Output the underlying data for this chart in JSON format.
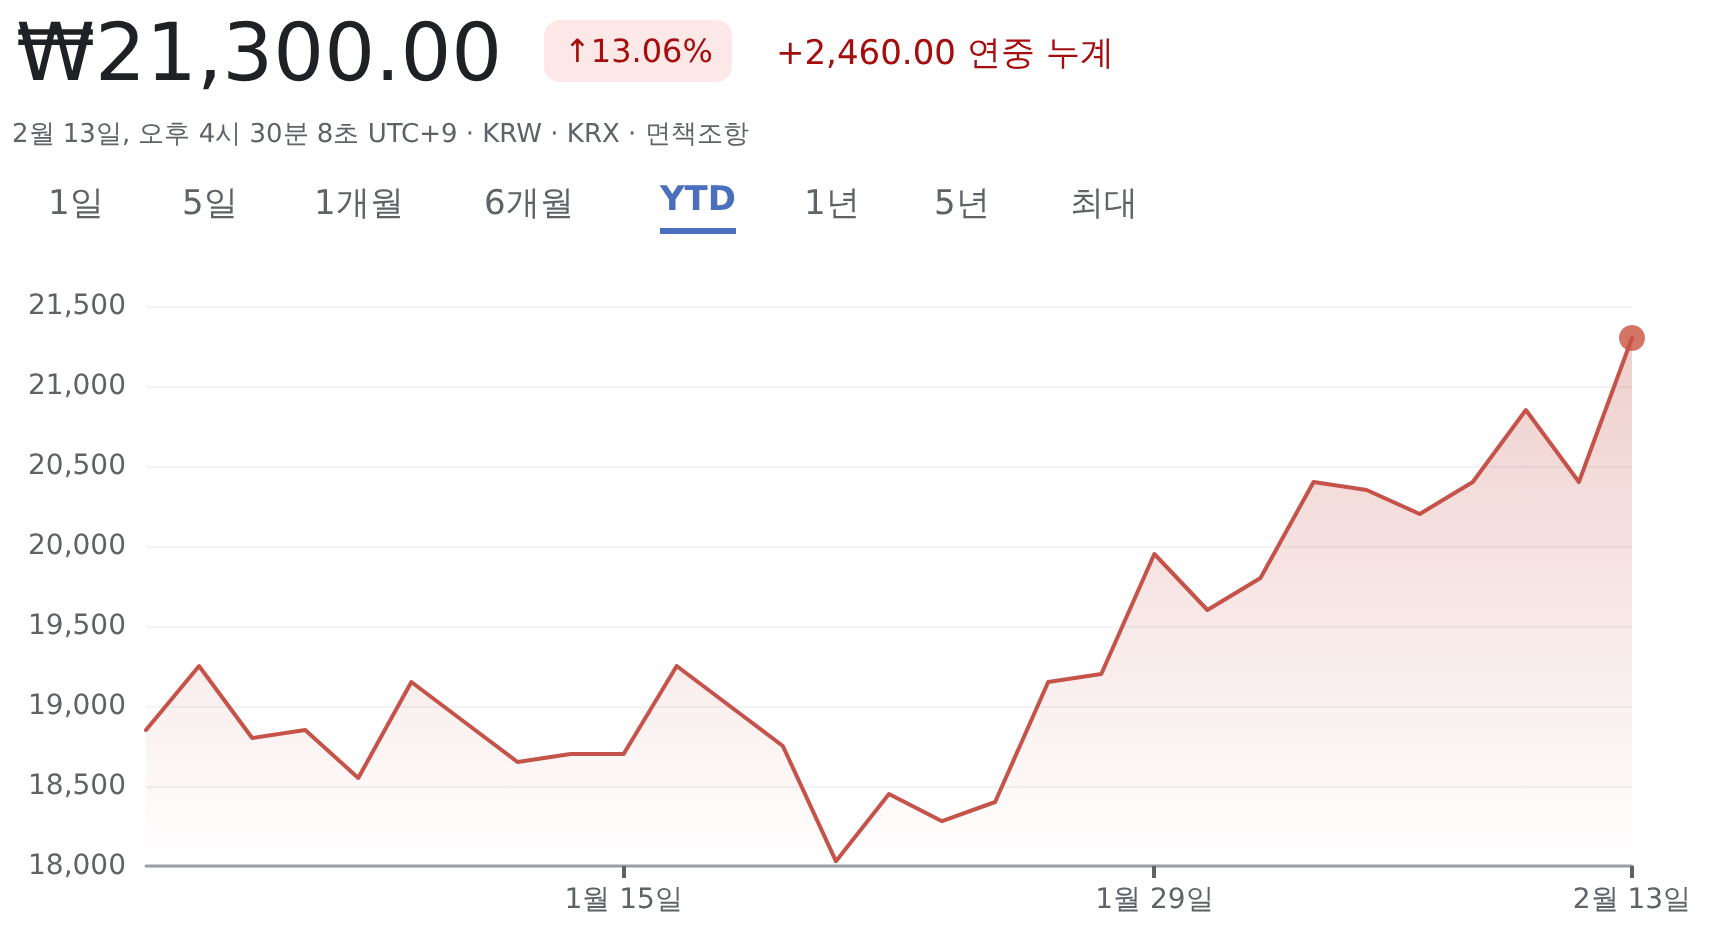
{
  "chart_data": {
    "type": "area",
    "title": "₩21,300.00",
    "subtitle": "2월 13일, 오후 4시 30분 8초 UTC+9 · KRW · KRX · 면책조항",
    "annotations": [
      "↑13.06%",
      "+2,460.00 연중 누계",
      "1일",
      "5일",
      "1개월",
      "6개월",
      "YTD",
      "1년",
      "5년",
      "최대"
    ],
    "categories": [
      null,
      null,
      null,
      null,
      null,
      null,
      null,
      null,
      null,
      "1월 15일",
      null,
      null,
      null,
      null,
      null,
      null,
      null,
      null,
      null,
      "1월 29일",
      null,
      null,
      null,
      null,
      null,
      null,
      null,
      null,
      "2월 13일"
    ],
    "series": [
      {
        "color": "#c5534a",
        "values": [
          18850,
          19250,
          18800,
          18850,
          18550,
          19150,
          18900,
          18650,
          18700,
          18700,
          19250,
          19000,
          18750,
          18030,
          18450,
          18280,
          18400,
          19150,
          19200,
          19950,
          19600,
          19800,
          20400,
          20350,
          20200,
          20400,
          20850,
          20400,
          21300
        ]
      },
      {
        "type": "scatter",
        "color": "#c9513f",
        "x": [
          "2월 13일"
        ],
        "values": [
          21300
        ]
      }
    ],
    "ylim": [
      18000,
      21500
    ],
    "yticks": [
      {
        "value": 18000,
        "label": "18,000"
      },
      {
        "value": 18500,
        "label": "18,500"
      },
      {
        "value": 19000,
        "label": "19,000"
      },
      {
        "value": 19500,
        "label": "19,500"
      },
      {
        "value": 20000,
        "label": "20,000"
      },
      {
        "value": 20500,
        "label": "20,500"
      },
      {
        "value": 21000,
        "label": "21,000"
      },
      {
        "value": 21500,
        "label": "21,500"
      }
    ],
    "grid": "y",
    "line_style": "solid"
  }
}
